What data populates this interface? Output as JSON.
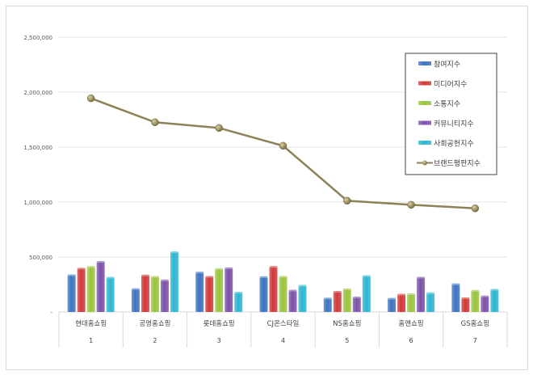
{
  "chart_data": {
    "type": "bar",
    "title": "",
    "xlabel": "",
    "ylabel": "",
    "ylim": [
      0,
      2500000
    ],
    "yticks": [
      0,
      500000,
      1000000,
      1500000,
      2000000,
      2500000
    ],
    "ytick_labels": [
      "-",
      "500,000",
      "1,000,000",
      "1,500,000",
      "2,000,000",
      "2,500,000"
    ],
    "grid": true,
    "legend_position": "top-right",
    "categories": [
      "현대홈쇼핑",
      "공영홈쇼핑",
      "롯데홈쇼핑",
      "CJ온스타일",
      "NS홈쇼핑",
      "홈앤쇼핑",
      "GS홈쇼핑"
    ],
    "category_numbers": [
      "1",
      "2",
      "3",
      "4",
      "5",
      "6",
      "7"
    ],
    "series": [
      {
        "name": "참여지수",
        "kind": "bar",
        "color": "#3f73c0",
        "values": [
          341000,
          215000,
          366000,
          324000,
          130000,
          128000,
          259000
        ]
      },
      {
        "name": "미디어지수",
        "kind": "bar",
        "color": "#d03a3a",
        "values": [
          402000,
          339000,
          327000,
          417000,
          191000,
          165000,
          132000
        ]
      },
      {
        "name": "소통지수",
        "kind": "bar",
        "color": "#9bc43f",
        "values": [
          417000,
          327000,
          398000,
          327000,
          213000,
          169000,
          200000
        ]
      },
      {
        "name": "커뮤니티지수",
        "kind": "bar",
        "color": "#7d52a8",
        "values": [
          463000,
          295000,
          405000,
          202000,
          140000,
          320000,
          149000
        ]
      },
      {
        "name": "사회공헌지수",
        "kind": "bar",
        "color": "#2fb6d0",
        "values": [
          320000,
          551000,
          183000,
          246000,
          334000,
          178000,
          210000
        ]
      },
      {
        "name": "브랜드평판지수",
        "kind": "line",
        "color": "#8c8255",
        "values": [
          1944000,
          1726000,
          1674000,
          1512000,
          1012000,
          975000,
          943000
        ]
      }
    ]
  }
}
